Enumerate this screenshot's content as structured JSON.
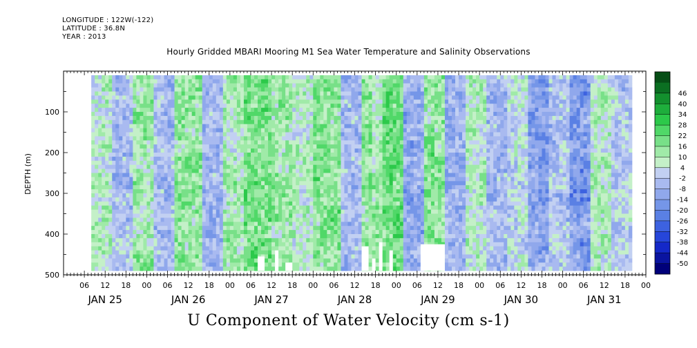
{
  "header": {
    "longitude": "LONGITUDE : 122W(-122)",
    "latitude": "LATITUDE : 36.8N",
    "year": "YEAR : 2013"
  },
  "chart_data": {
    "type": "heatmap",
    "title": "Hourly Gridded MBARI Mooring M1 Sea Water Temperature and Salinity Observations",
    "bottom_label": "U Component of Water Velocity (cm s-1)",
    "ylabel": "DEPTH (m)",
    "ylim": [
      0,
      500
    ],
    "y_axis_reversed": true,
    "y_ticks": [
      100,
      200,
      300,
      400,
      500
    ],
    "x_range_hours": [
      0,
      168
    ],
    "data_start_hour": 8,
    "data_end_hour": 164,
    "data_min_depth": 10,
    "data_max_depth": 490,
    "x_hour_ticks": [
      "06",
      "12",
      "18",
      "00",
      "06",
      "12",
      "18",
      "00",
      "06",
      "12",
      "18",
      "00",
      "06",
      "12",
      "18",
      "00",
      "06",
      "12",
      "18",
      "00",
      "06",
      "12",
      "18",
      "00",
      "06",
      "12",
      "18",
      "00"
    ],
    "x_days": [
      "JAN 25",
      "JAN 26",
      "JAN 27",
      "JAN 28",
      "JAN 29",
      "JAN 30",
      "JAN 31"
    ],
    "colorbar": {
      "levels": [
        -50,
        -44,
        -38,
        -32,
        -26,
        -20,
        -14,
        -8,
        -2,
        4,
        10,
        16,
        22,
        28,
        34,
        40,
        46
      ],
      "colors": [
        "#00007a",
        "#0a14a0",
        "#1428c8",
        "#2646da",
        "#3d62e0",
        "#5a80e4",
        "#7596e8",
        "#90a8ec",
        "#a9baf0",
        "#c2d0f2",
        "#c4f0c8",
        "#a0eaa8",
        "#78e088",
        "#50d868",
        "#2cc94a",
        "#1eae3c",
        "#13902e",
        "#0b6f22",
        "#064e16"
      ]
    },
    "blocks": [
      {
        "start": 8,
        "end": 14,
        "mean": 8
      },
      {
        "start": 14,
        "end": 20,
        "mean": -4
      },
      {
        "start": 20,
        "end": 26,
        "mean": 12
      },
      {
        "start": 26,
        "end": 32,
        "mean": -6
      },
      {
        "start": 32,
        "end": 40,
        "mean": 14
      },
      {
        "start": 40,
        "end": 46,
        "mean": -8
      },
      {
        "start": 46,
        "end": 52,
        "mean": 10
      },
      {
        "start": 52,
        "end": 60,
        "mean": 18
      },
      {
        "start": 60,
        "end": 66,
        "mean": 12
      },
      {
        "start": 66,
        "end": 72,
        "mean": 6
      },
      {
        "start": 72,
        "end": 80,
        "mean": 16
      },
      {
        "start": 80,
        "end": 86,
        "mean": -6
      },
      {
        "start": 86,
        "end": 92,
        "mean": 14
      },
      {
        "start": 92,
        "end": 98,
        "mean": 20
      },
      {
        "start": 98,
        "end": 104,
        "mean": -10
      },
      {
        "start": 104,
        "end": 110,
        "mean": 16
      },
      {
        "start": 110,
        "end": 116,
        "mean": -8
      },
      {
        "start": 116,
        "end": 122,
        "mean": 6
      },
      {
        "start": 122,
        "end": 128,
        "mean": -6
      },
      {
        "start": 128,
        "end": 134,
        "mean": 2
      },
      {
        "start": 134,
        "end": 140,
        "mean": -12
      },
      {
        "start": 140,
        "end": 146,
        "mean": -4
      },
      {
        "start": 146,
        "end": 152,
        "mean": -14
      },
      {
        "start": 152,
        "end": 158,
        "mean": 8
      },
      {
        "start": 158,
        "end": 164,
        "mean": -2
      }
    ],
    "missing_bottom": [
      {
        "start": 56,
        "end": 58,
        "top_depth": 455
      },
      {
        "start": 61,
        "end": 62,
        "top_depth": 440
      },
      {
        "start": 64,
        "end": 66,
        "top_depth": 470
      },
      {
        "start": 86,
        "end": 88,
        "top_depth": 430
      },
      {
        "start": 89,
        "end": 90,
        "top_depth": 460
      },
      {
        "start": 91,
        "end": 92,
        "top_depth": 420
      },
      {
        "start": 94,
        "end": 95,
        "top_depth": 440
      },
      {
        "start": 103,
        "end": 110,
        "top_depth": 425
      }
    ]
  }
}
